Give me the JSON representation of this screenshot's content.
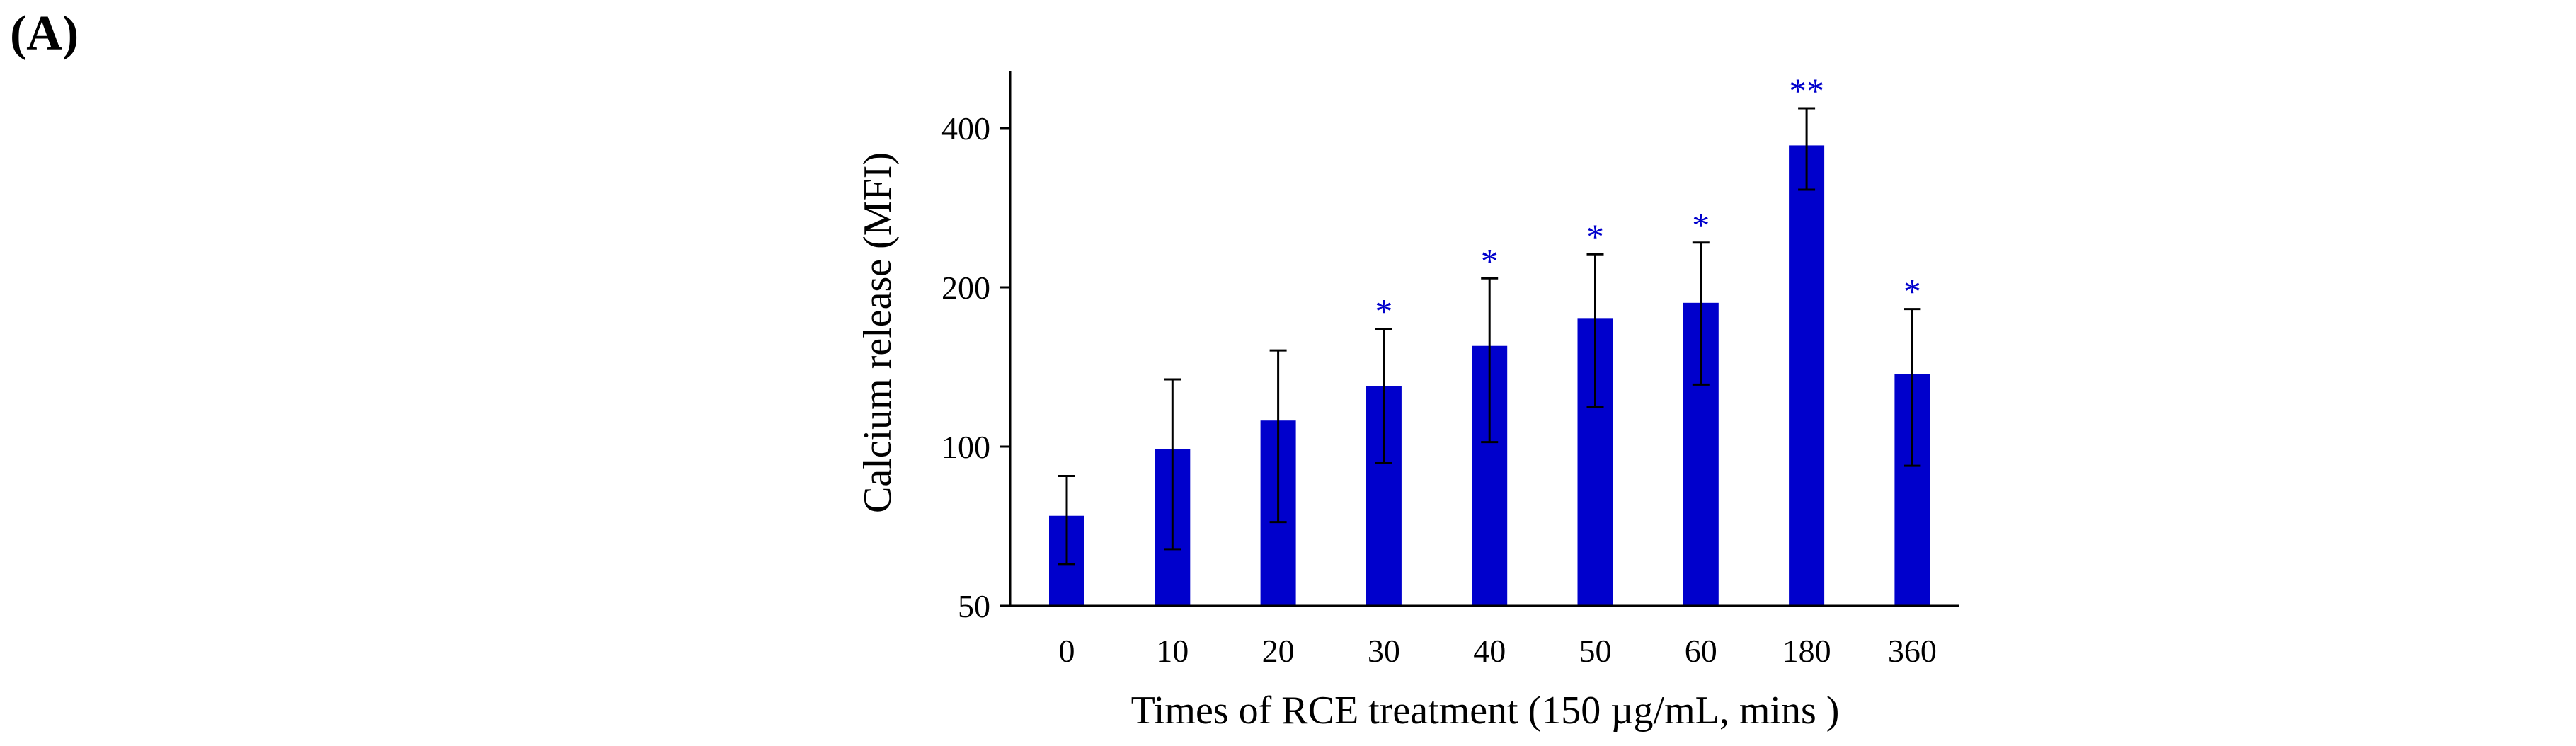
{
  "panel_label": "(A)",
  "chart_data": {
    "type": "bar",
    "title": "",
    "xlabel": "Times of  RCE treatment (150 µg/mL, mins )",
    "ylabel": "Calcium release (MFI)",
    "y_scale": "log",
    "ylim": [
      50,
      480
    ],
    "yticks": [
      50,
      100,
      200,
      400
    ],
    "ytick_labels": [
      "50",
      "100",
      "200",
      "400"
    ],
    "categories": [
      "0",
      "10",
      "20",
      "30",
      "40",
      "50",
      "60",
      "180",
      "360"
    ],
    "series": [
      {
        "name": "Calcium release",
        "color": "#0000cc",
        "values": [
          74,
          99,
          112,
          130,
          155,
          175,
          187,
          371,
          137
        ],
        "error": [
          14,
          35,
          40,
          37,
          53,
          56,
          56,
          65,
          45
        ],
        "annotations": [
          "",
          "",
          "",
          "*",
          "*",
          "*",
          "*",
          "**",
          "*"
        ]
      }
    ],
    "bar_color": "#0000cc",
    "annotation_color": "#0000cc",
    "grid": false,
    "legend": "none"
  }
}
